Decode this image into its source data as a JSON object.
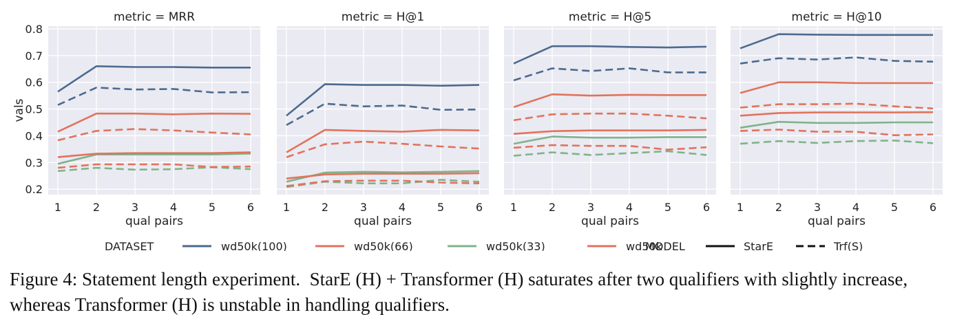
{
  "chart_data": {
    "type": "line",
    "x": [
      1,
      2,
      3,
      4,
      5,
      6
    ],
    "xlabel": "qual pairs",
    "ylabel": "vals",
    "ylim": [
      0.18,
      0.81
    ],
    "yticks": [
      "0.2",
      "0.3",
      "0.4",
      "0.5",
      "0.6",
      "0.7",
      "0.8"
    ],
    "grid": true,
    "legend": {
      "position": "bottom",
      "dataset_title": "DATASET",
      "model_title": "MODEL",
      "datasets": [
        {
          "label": "wd50k(100)",
          "color": "#4c6a8f"
        },
        {
          "label": "wd50k(66)",
          "color": "#e0735c"
        },
        {
          "label": "wd50k(33)",
          "color": "#7fb38a"
        },
        {
          "label": "wd50k",
          "color": "#e0735c"
        }
      ],
      "models": [
        {
          "label": "StarE",
          "dash": "solid"
        },
        {
          "label": "Trf(S)",
          "dash": "dashed"
        }
      ]
    },
    "panels": [
      {
        "title": "metric = MRR",
        "series": [
          {
            "dataset": "wd50k(100)",
            "model": "StarE",
            "values": [
              0.565,
              0.66,
              0.657,
              0.657,
              0.655,
              0.655
            ]
          },
          {
            "dataset": "wd50k(100)",
            "model": "Trf(S)",
            "values": [
              0.515,
              0.58,
              0.573,
              0.575,
              0.562,
              0.563
            ]
          },
          {
            "dataset": "wd50k(66)",
            "model": "StarE",
            "values": [
              0.415,
              0.483,
              0.483,
              0.48,
              0.483,
              0.482
            ]
          },
          {
            "dataset": "wd50k(66)",
            "model": "Trf(S)",
            "values": [
              0.383,
              0.418,
              0.425,
              0.42,
              0.412,
              0.405
            ]
          },
          {
            "dataset": "wd50k(33)",
            "model": "StarE",
            "values": [
              0.295,
              0.33,
              0.33,
              0.33,
              0.33,
              0.333
            ]
          },
          {
            "dataset": "wd50k(33)",
            "model": "Trf(S)",
            "values": [
              0.268,
              0.28,
              0.273,
              0.275,
              0.282,
              0.275
            ]
          },
          {
            "dataset": "wd50k",
            "model": "StarE",
            "values": [
              0.32,
              0.333,
              0.335,
              0.335,
              0.335,
              0.338
            ]
          },
          {
            "dataset": "wd50k",
            "model": "Trf(S)",
            "values": [
              0.28,
              0.293,
              0.293,
              0.293,
              0.283,
              0.285
            ]
          }
        ]
      },
      {
        "title": "metric = H@1",
        "series": [
          {
            "dataset": "wd50k(100)",
            "model": "StarE",
            "values": [
              0.475,
              0.593,
              0.59,
              0.59,
              0.587,
              0.59
            ]
          },
          {
            "dataset": "wd50k(100)",
            "model": "Trf(S)",
            "values": [
              0.44,
              0.52,
              0.51,
              0.513,
              0.497,
              0.498
            ]
          },
          {
            "dataset": "wd50k(66)",
            "model": "StarE",
            "values": [
              0.338,
              0.422,
              0.418,
              0.415,
              0.422,
              0.42
            ]
          },
          {
            "dataset": "wd50k(66)",
            "model": "Trf(S)",
            "values": [
              0.32,
              0.368,
              0.378,
              0.37,
              0.36,
              0.352
            ]
          },
          {
            "dataset": "wd50k(33)",
            "model": "StarE",
            "values": [
              0.228,
              0.262,
              0.265,
              0.263,
              0.265,
              0.268
            ]
          },
          {
            "dataset": "wd50k(33)",
            "model": "Trf(S)",
            "values": [
              0.208,
              0.228,
              0.222,
              0.222,
              0.235,
              0.228
            ]
          },
          {
            "dataset": "wd50k",
            "model": "StarE",
            "values": [
              0.24,
              0.255,
              0.258,
              0.258,
              0.258,
              0.26
            ]
          },
          {
            "dataset": "wd50k",
            "model": "Trf(S)",
            "values": [
              0.212,
              0.23,
              0.232,
              0.232,
              0.225,
              0.222
            ]
          }
        ]
      },
      {
        "title": "metric = H@5",
        "series": [
          {
            "dataset": "wd50k(100)",
            "model": "StarE",
            "values": [
              0.67,
              0.735,
              0.735,
              0.732,
              0.73,
              0.733
            ]
          },
          {
            "dataset": "wd50k(100)",
            "model": "Trf(S)",
            "values": [
              0.607,
              0.652,
              0.642,
              0.652,
              0.637,
              0.637
            ]
          },
          {
            "dataset": "wd50k(66)",
            "model": "StarE",
            "values": [
              0.507,
              0.555,
              0.55,
              0.553,
              0.552,
              0.552
            ]
          },
          {
            "dataset": "wd50k(66)",
            "model": "Trf(S)",
            "values": [
              0.458,
              0.48,
              0.483,
              0.483,
              0.475,
              0.465
            ]
          },
          {
            "dataset": "wd50k(33)",
            "model": "StarE",
            "values": [
              0.37,
              0.397,
              0.393,
              0.393,
              0.395,
              0.395
            ]
          },
          {
            "dataset": "wd50k(33)",
            "model": "Trf(S)",
            "values": [
              0.325,
              0.338,
              0.328,
              0.335,
              0.342,
              0.328
            ]
          },
          {
            "dataset": "wd50k",
            "model": "StarE",
            "values": [
              0.407,
              0.417,
              0.42,
              0.42,
              0.42,
              0.422
            ]
          },
          {
            "dataset": "wd50k",
            "model": "Trf(S)",
            "values": [
              0.355,
              0.365,
              0.362,
              0.362,
              0.348,
              0.357
            ]
          }
        ]
      },
      {
        "title": "metric = H@10",
        "series": [
          {
            "dataset": "wd50k(100)",
            "model": "StarE",
            "values": [
              0.727,
              0.78,
              0.778,
              0.777,
              0.777,
              0.777
            ]
          },
          {
            "dataset": "wd50k(100)",
            "model": "Trf(S)",
            "values": [
              0.67,
              0.69,
              0.685,
              0.693,
              0.68,
              0.677
            ]
          },
          {
            "dataset": "wd50k(66)",
            "model": "StarE",
            "values": [
              0.56,
              0.6,
              0.6,
              0.597,
              0.597,
              0.597
            ]
          },
          {
            "dataset": "wd50k(66)",
            "model": "Trf(S)",
            "values": [
              0.505,
              0.518,
              0.518,
              0.52,
              0.51,
              0.502
            ]
          },
          {
            "dataset": "wd50k(33)",
            "model": "StarE",
            "values": [
              0.43,
              0.452,
              0.448,
              0.448,
              0.45,
              0.45
            ]
          },
          {
            "dataset": "wd50k(33)",
            "model": "Trf(S)",
            "values": [
              0.37,
              0.38,
              0.373,
              0.38,
              0.382,
              0.372
            ]
          },
          {
            "dataset": "wd50k",
            "model": "StarE",
            "values": [
              0.475,
              0.485,
              0.487,
              0.487,
              0.487,
              0.488
            ]
          },
          {
            "dataset": "wd50k",
            "model": "Trf(S)",
            "values": [
              0.418,
              0.423,
              0.415,
              0.415,
              0.402,
              0.405
            ]
          }
        ]
      }
    ]
  },
  "caption": {
    "label": "Figure 4: ",
    "text": "Statement length experiment.  StarE (H) + Transformer (H) saturates after two qualifiers with slightly increase, whereas Transformer (H) is unstable in handling qualifiers."
  }
}
